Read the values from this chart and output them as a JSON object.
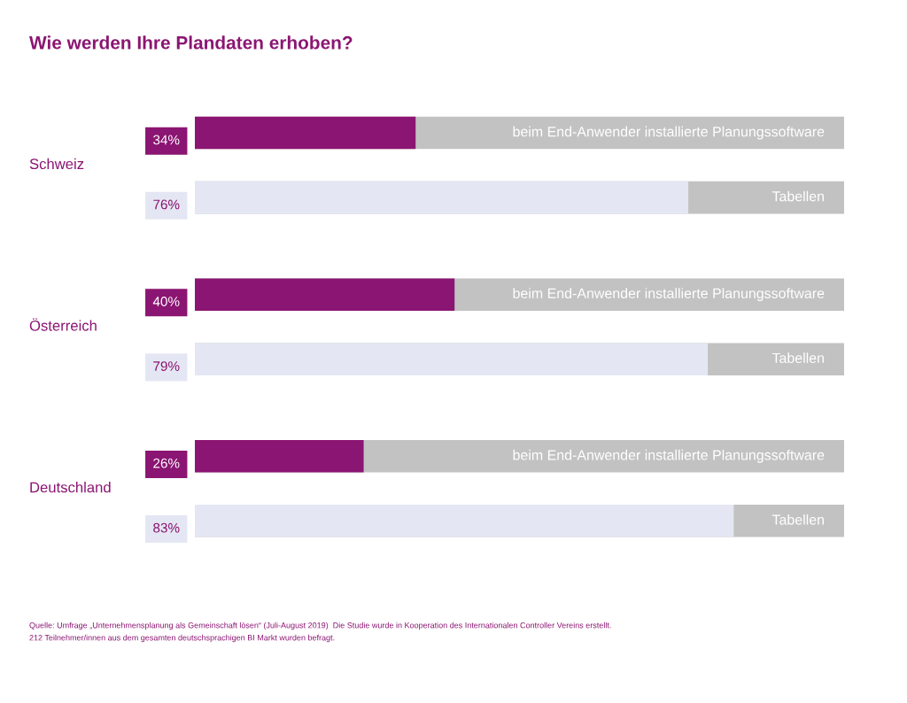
{
  "chart_data": {
    "type": "bar",
    "orientation": "horizontal",
    "title": "Wie werden Ihre Plandaten erhoben?",
    "categories": [
      "Schweiz",
      "Österreich",
      "Deutschland"
    ],
    "series": [
      {
        "name": "beim End-Anwender installierte Planungssoftware",
        "color": "#8b1572",
        "values": [
          34,
          40,
          26
        ],
        "value_labels": [
          "34%",
          "40%",
          "26%"
        ]
      },
      {
        "name": "Tabellen",
        "color": "#e4e7f3",
        "values": [
          76,
          79,
          83
        ],
        "value_labels": [
          "76%",
          "79%",
          "83%"
        ]
      }
    ],
    "xlim": [
      0,
      100
    ],
    "tick_labels": "y",
    "legend": false,
    "annotations": [
      "Quelle: Umfrage „Unternehmensplanung als Gemeinschaft lösen“ (Juli-August 2019)  Die Studie wurde in Kooperation des Internationalen Controller Vereins erstellt.",
      "212 Teilnehmer/innen aus dem gesamten deutschsprachigen BI Markt wurden befragt."
    ]
  }
}
